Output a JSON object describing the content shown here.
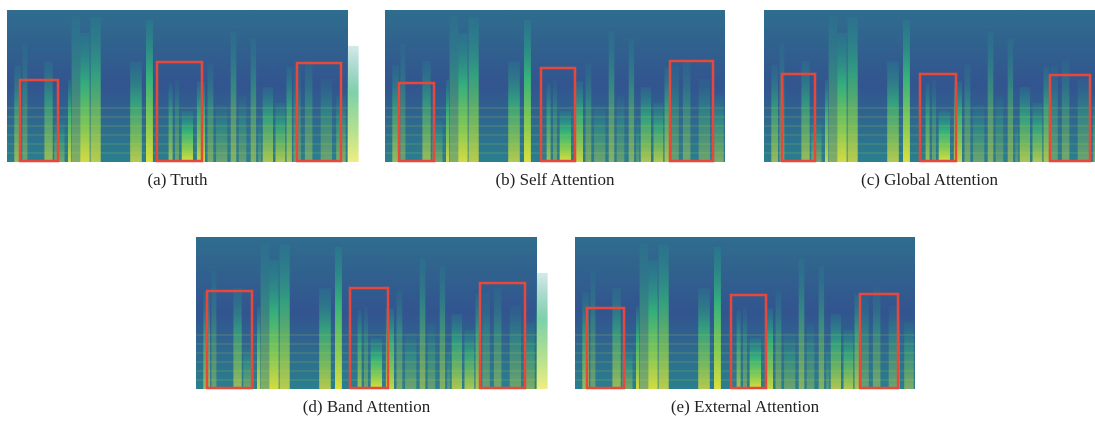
{
  "panels": [
    {
      "caption": "(a) Truth"
    },
    {
      "caption": "(b) Self Attention"
    },
    {
      "caption": "(c) Global Attention"
    },
    {
      "caption": "(d) Band Attention"
    },
    {
      "caption": "(e) External Attention"
    }
  ]
}
